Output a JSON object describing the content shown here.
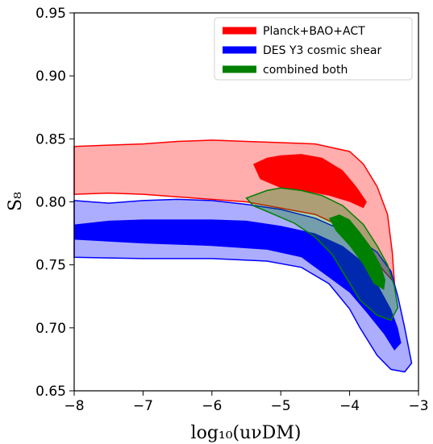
{
  "chart_data": {
    "type": "area",
    "xlabel": "log₁₀(uνDM)",
    "ylabel": "S₈",
    "xlim": [
      -8,
      -3
    ],
    "ylim": [
      0.65,
      0.95
    ],
    "xticks": [
      -8,
      -7,
      -6,
      -5,
      -4,
      -3
    ],
    "yticks": [
      0.65,
      0.7,
      0.75,
      0.8,
      0.85,
      0.9,
      0.95
    ],
    "xtick_labels": [
      "−8",
      "−7",
      "−6",
      "−5",
      "−4",
      "−3"
    ],
    "ytick_labels": [
      "0.65",
      "0.70",
      "0.75",
      "0.80",
      "0.85",
      "0.90",
      "0.95"
    ],
    "legend_position": "top-right",
    "series": [
      {
        "name": "Planck+BAO+ACT",
        "color": "#ff0000",
        "contour_95": [
          [
            -8.0,
            0.844
          ],
          [
            -7.5,
            0.845
          ],
          [
            -7.0,
            0.846
          ],
          [
            -6.5,
            0.848
          ],
          [
            -6.0,
            0.849
          ],
          [
            -5.5,
            0.848
          ],
          [
            -5.0,
            0.847
          ],
          [
            -4.5,
            0.846
          ],
          [
            -4.0,
            0.84
          ],
          [
            -3.8,
            0.83
          ],
          [
            -3.6,
            0.812
          ],
          [
            -3.45,
            0.79
          ],
          [
            -3.38,
            0.76
          ],
          [
            -3.35,
            0.736
          ],
          [
            -3.5,
            0.745
          ],
          [
            -3.8,
            0.765
          ],
          [
            -4.1,
            0.78
          ],
          [
            -4.5,
            0.79
          ],
          [
            -5.0,
            0.795
          ],
          [
            -5.5,
            0.8
          ],
          [
            -6.0,
            0.802
          ],
          [
            -7.0,
            0.806
          ],
          [
            -7.5,
            0.807
          ],
          [
            -8.0,
            0.806
          ]
        ],
        "contour_68": [
          [
            -5.4,
            0.83
          ],
          [
            -5.2,
            0.835
          ],
          [
            -5.0,
            0.837
          ],
          [
            -4.7,
            0.838
          ],
          [
            -4.4,
            0.835
          ],
          [
            -4.1,
            0.825
          ],
          [
            -3.9,
            0.812
          ],
          [
            -3.75,
            0.8
          ],
          [
            -3.8,
            0.795
          ],
          [
            -4.0,
            0.8
          ],
          [
            -4.3,
            0.805
          ],
          [
            -4.6,
            0.808
          ],
          [
            -5.0,
            0.811
          ],
          [
            -5.3,
            0.818
          ]
        ]
      },
      {
        "name": "DES Y3 cosmic shear",
        "color": "#0000ff",
        "contour_95": [
          [
            -8.0,
            0.801
          ],
          [
            -7.5,
            0.799
          ],
          [
            -7.0,
            0.801
          ],
          [
            -6.5,
            0.802
          ],
          [
            -6.0,
            0.801
          ],
          [
            -5.5,
            0.798
          ],
          [
            -5.0,
            0.794
          ],
          [
            -4.5,
            0.787
          ],
          [
            -4.0,
            0.775
          ],
          [
            -3.6,
            0.76
          ],
          [
            -3.4,
            0.745
          ],
          [
            -3.3,
            0.725
          ],
          [
            -3.2,
            0.7
          ],
          [
            -3.1,
            0.672
          ],
          [
            -3.2,
            0.665
          ],
          [
            -3.4,
            0.667
          ],
          [
            -3.6,
            0.678
          ],
          [
            -3.85,
            0.7
          ],
          [
            -4.0,
            0.715
          ],
          [
            -4.3,
            0.735
          ],
          [
            -4.7,
            0.748
          ],
          [
            -5.2,
            0.753
          ],
          [
            -6.0,
            0.755
          ],
          [
            -7.0,
            0.755
          ],
          [
            -8.0,
            0.756
          ]
        ],
        "contour_68": [
          [
            -8.0,
            0.782
          ],
          [
            -7.5,
            0.785
          ],
          [
            -7.0,
            0.786
          ],
          [
            -6.5,
            0.786
          ],
          [
            -6.0,
            0.786
          ],
          [
            -5.5,
            0.785
          ],
          [
            -5.0,
            0.781
          ],
          [
            -4.5,
            0.775
          ],
          [
            -4.1,
            0.765
          ],
          [
            -3.8,
            0.752
          ],
          [
            -3.6,
            0.735
          ],
          [
            -3.4,
            0.715
          ],
          [
            -3.3,
            0.7
          ],
          [
            -3.25,
            0.688
          ],
          [
            -3.35,
            0.682
          ],
          [
            -3.5,
            0.695
          ],
          [
            -3.75,
            0.712
          ],
          [
            -4.0,
            0.728
          ],
          [
            -4.3,
            0.74
          ],
          [
            -4.7,
            0.756
          ],
          [
            -5.2,
            0.762
          ],
          [
            -6.0,
            0.765
          ],
          [
            -7.0,
            0.767
          ],
          [
            -8.0,
            0.77
          ]
        ]
      },
      {
        "name": "combined both",
        "color": "#008000",
        "contour_95": [
          [
            -5.5,
            0.803
          ],
          [
            -5.2,
            0.809
          ],
          [
            -5.0,
            0.811
          ],
          [
            -4.7,
            0.809
          ],
          [
            -4.4,
            0.805
          ],
          [
            -4.1,
            0.797
          ],
          [
            -3.8,
            0.782
          ],
          [
            -3.6,
            0.765
          ],
          [
            -3.45,
            0.75
          ],
          [
            -3.35,
            0.733
          ],
          [
            -3.3,
            0.716
          ],
          [
            -3.4,
            0.706
          ],
          [
            -3.6,
            0.71
          ],
          [
            -3.85,
            0.722
          ],
          [
            -4.05,
            0.74
          ],
          [
            -4.25,
            0.758
          ],
          [
            -4.5,
            0.772
          ],
          [
            -4.8,
            0.783
          ],
          [
            -5.1,
            0.79
          ],
          [
            -5.4,
            0.797
          ]
        ],
        "contour_68": [
          [
            -4.3,
            0.787
          ],
          [
            -4.15,
            0.79
          ],
          [
            -4.0,
            0.786
          ],
          [
            -3.85,
            0.776
          ],
          [
            -3.7,
            0.765
          ],
          [
            -3.55,
            0.75
          ],
          [
            -3.48,
            0.738
          ],
          [
            -3.5,
            0.73
          ],
          [
            -3.65,
            0.735
          ],
          [
            -3.8,
            0.75
          ],
          [
            -4.0,
            0.765
          ],
          [
            -4.2,
            0.777
          ]
        ]
      }
    ]
  }
}
